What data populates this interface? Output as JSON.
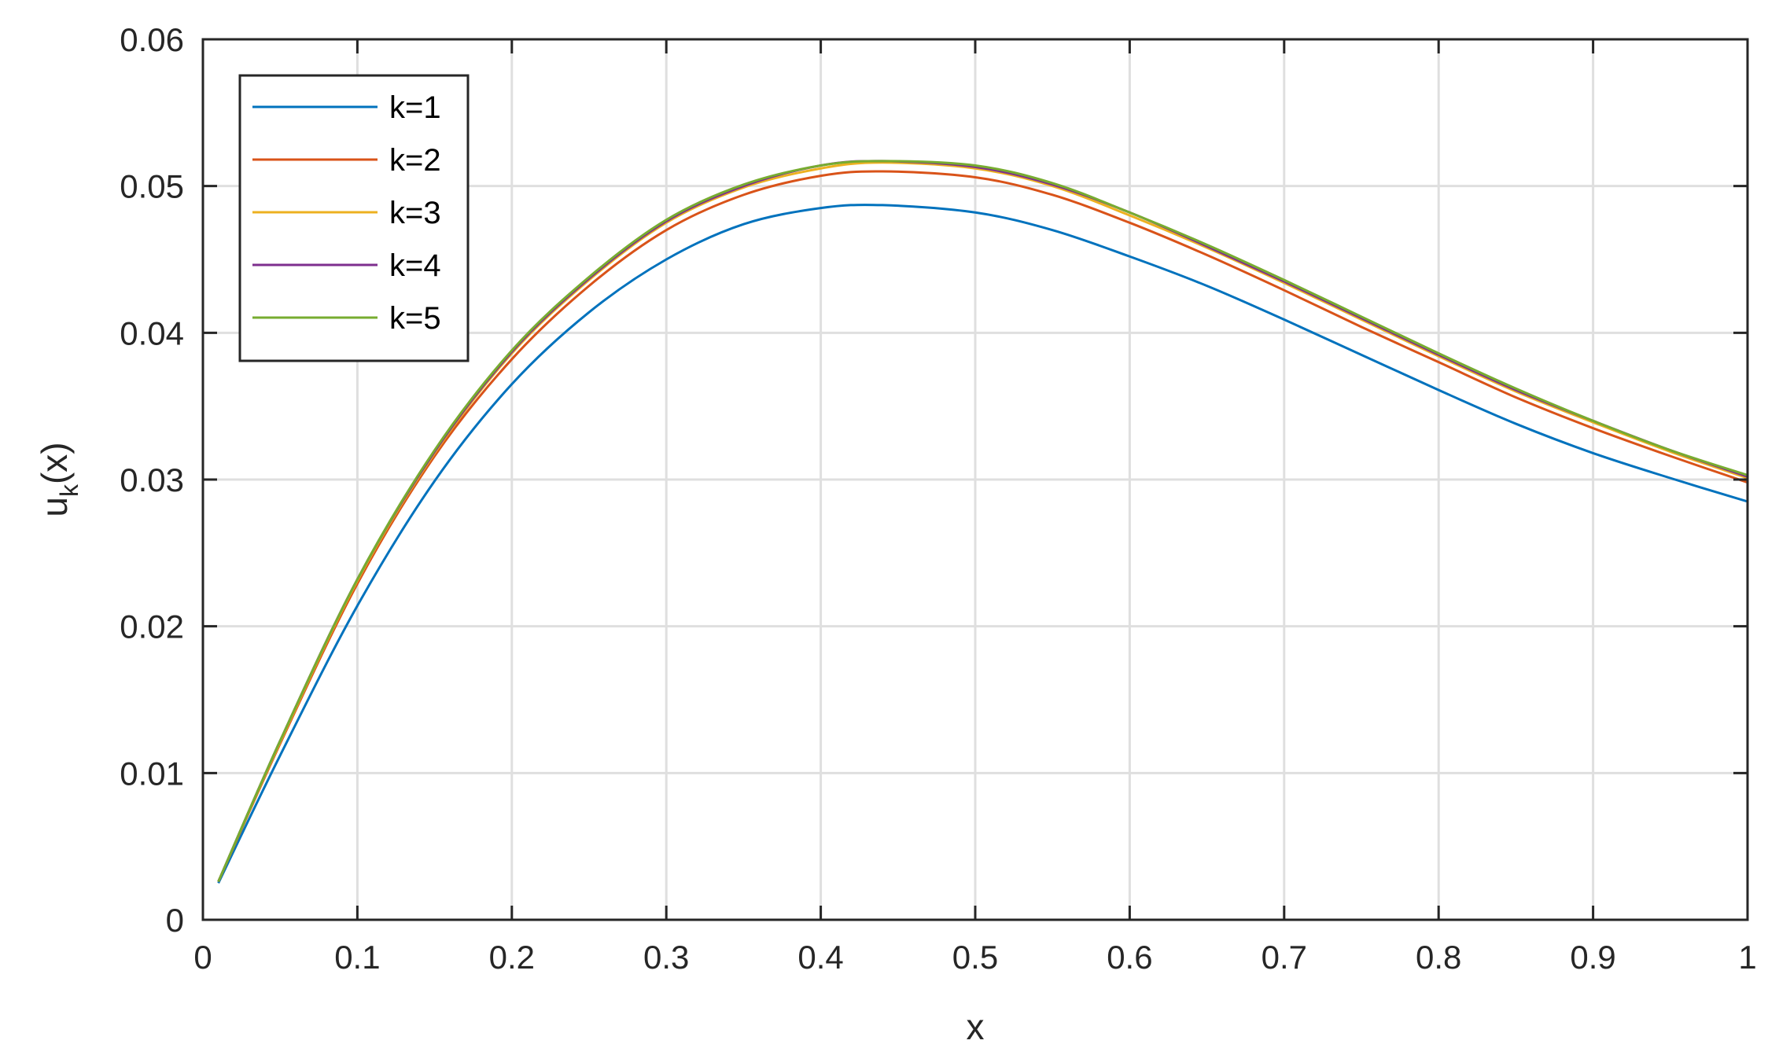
{
  "chart_data": {
    "type": "line",
    "xlabel": "x",
    "ylabel": {
      "base": "u",
      "subscript": "k",
      "suffix": "(x)"
    },
    "xlim": [
      0,
      1
    ],
    "ylim": [
      0,
      0.06
    ],
    "xticks": [
      "0",
      "0.1",
      "0.2",
      "0.3",
      "0.4",
      "0.5",
      "0.6",
      "0.7",
      "0.8",
      "0.9",
      "1"
    ],
    "yticks": [
      "0",
      "0.01",
      "0.02",
      "0.03",
      "0.04",
      "0.05",
      "0.06"
    ],
    "grid": true,
    "legend_position": "top-left",
    "x": [
      0.01,
      0.05,
      0.1,
      0.15,
      0.2,
      0.25,
      0.3,
      0.35,
      0.4,
      0.44,
      0.5,
      0.55,
      0.6,
      0.65,
      0.7,
      0.75,
      0.8,
      0.85,
      0.9,
      0.95,
      1.0
    ],
    "series": [
      {
        "name": "k=1",
        "color": "#0072BD",
        "values": [
          0.0025,
          0.0112,
          0.0214,
          0.0299,
          0.0365,
          0.0414,
          0.045,
          0.0474,
          0.0485,
          0.0487,
          0.0482,
          0.047,
          0.0452,
          0.0432,
          0.0409,
          0.0385,
          0.0361,
          0.0338,
          0.0318,
          0.0301,
          0.0285
        ]
      },
      {
        "name": "k=2",
        "color": "#D95319",
        "values": [
          0.0026,
          0.012,
          0.0229,
          0.0316,
          0.0382,
          0.0432,
          0.047,
          0.0494,
          0.0507,
          0.051,
          0.0506,
          0.0494,
          0.0475,
          0.0453,
          0.0429,
          0.0404,
          0.038,
          0.0356,
          0.0335,
          0.0316,
          0.0298
        ]
      },
      {
        "name": "k=3",
        "color": "#EDB120",
        "values": [
          0.0026,
          0.0121,
          0.0231,
          0.0318,
          0.0386,
          0.0436,
          0.0475,
          0.0499,
          0.0512,
          0.0516,
          0.0512,
          0.05,
          0.048,
          0.0458,
          0.0434,
          0.0409,
          0.0384,
          0.036,
          0.0339,
          0.0319,
          0.0301
        ]
      },
      {
        "name": "k=4",
        "color": "#7E2F8E",
        "values": [
          0.0026,
          0.0122,
          0.0232,
          0.0319,
          0.0387,
          0.0437,
          0.0476,
          0.05,
          0.0514,
          0.0517,
          0.0513,
          0.0501,
          0.0482,
          0.0459,
          0.0435,
          0.041,
          0.0385,
          0.0361,
          0.034,
          0.032,
          0.0302
        ]
      },
      {
        "name": "k=5",
        "color": "#77AC30",
        "values": [
          0.0026,
          0.0122,
          0.0232,
          0.032,
          0.0388,
          0.0438,
          0.0477,
          0.0501,
          0.0514,
          0.0517,
          0.0514,
          0.0502,
          0.0482,
          0.046,
          0.0436,
          0.0411,
          0.0386,
          0.0362,
          0.034,
          0.032,
          0.0303
        ]
      }
    ]
  }
}
